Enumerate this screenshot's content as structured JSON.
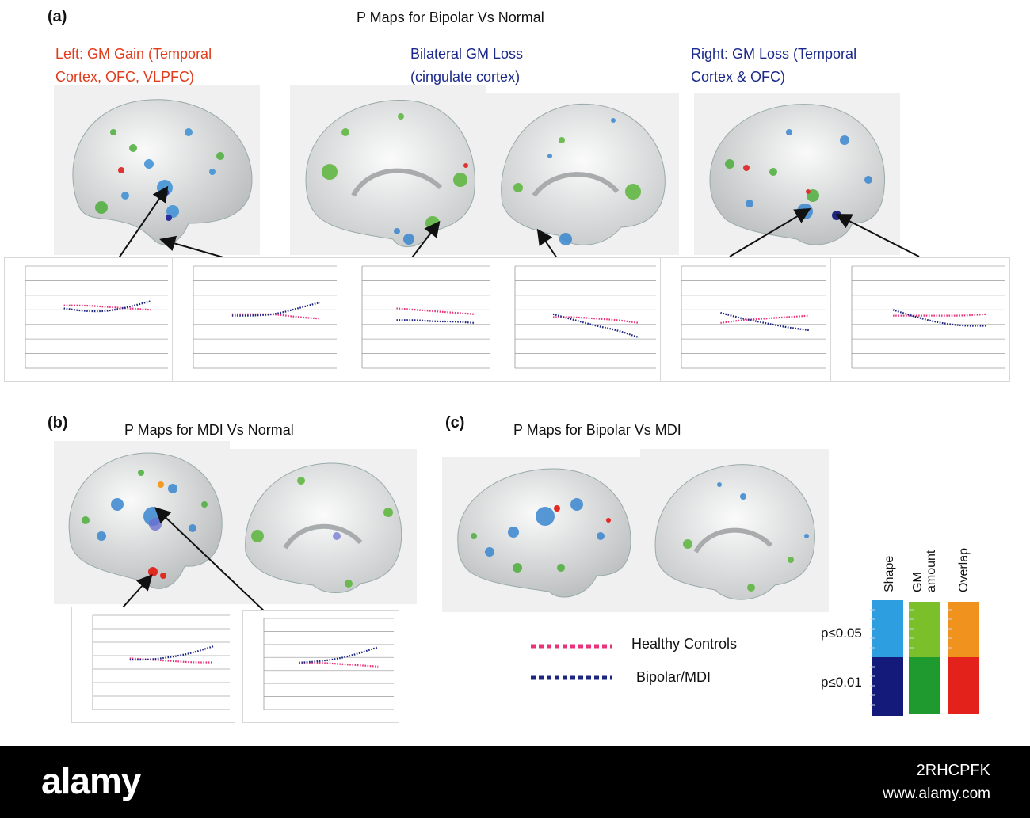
{
  "panel_a": {
    "letter": "(a)",
    "title": "P Maps for Bipolar Vs Normal",
    "left_caption": [
      "Left:     GM Gain (Temporal",
      "Cortex, OFC, VLPFC)"
    ],
    "mid_caption": [
      "Bilateral       GM Loss",
      "(cingulate cortex)"
    ],
    "right_caption": [
      "Right:     GM Loss (Temporal",
      "Cortex & OFC)"
    ]
  },
  "panel_b": {
    "letter": "(b)",
    "title": "P Maps for MDI Vs Normal"
  },
  "panel_c": {
    "letter": "(c)",
    "title": "P Maps for Bipolar Vs MDI"
  },
  "legend": {
    "healthy": "Healthy Controls",
    "bipolar": "Bipolar/MDI",
    "healthy_color": "#e8337a",
    "bipolar_color": "#1c2580"
  },
  "scale": {
    "columns": [
      "Shape",
      "GM amount",
      "Overlap"
    ],
    "p005": "p≤0.05",
    "p001": "p≤0.01",
    "colors": {
      "shape_005": "#2d9ee0",
      "shape_001": "#141a7a",
      "gm_005": "#7bbf2a",
      "gm_001": "#1f9a2e",
      "overlap_005": "#f0921e",
      "overlap_001": "#e3221c"
    }
  },
  "chart_data": [
    {
      "type": "line",
      "series": [
        {
          "values": [
            0.43,
            0.43,
            0.42,
            0.41,
            0.4
          ]
        },
        {
          "values": [
            0.41,
            0.39,
            0.39,
            0.42,
            0.46
          ]
        }
      ]
    },
    {
      "type": "line",
      "series": [
        {
          "values": [
            0.37,
            0.37,
            0.37,
            0.35,
            0.34
          ]
        },
        {
          "values": [
            0.36,
            0.36,
            0.37,
            0.41,
            0.45
          ]
        }
      ]
    },
    {
      "type": "line",
      "series": [
        {
          "values": [
            0.41,
            0.4,
            0.39,
            0.38,
            0.37
          ]
        },
        {
          "values": [
            0.33,
            0.33,
            0.32,
            0.32,
            0.31
          ]
        }
      ]
    },
    {
      "type": "line",
      "series": [
        {
          "values": [
            0.35,
            0.35,
            0.34,
            0.33,
            0.31
          ]
        },
        {
          "values": [
            0.37,
            0.33,
            0.29,
            0.26,
            0.21
          ]
        }
      ]
    },
    {
      "type": "line",
      "series": [
        {
          "values": [
            0.31,
            0.33,
            0.34,
            0.35,
            0.36
          ]
        },
        {
          "values": [
            0.38,
            0.34,
            0.31,
            0.28,
            0.26
          ]
        }
      ]
    },
    {
      "type": "line",
      "series": [
        {
          "values": [
            0.36,
            0.36,
            0.36,
            0.36,
            0.37
          ]
        },
        {
          "values": [
            0.4,
            0.35,
            0.31,
            0.29,
            0.29
          ]
        }
      ]
    },
    {
      "type": "line",
      "series": [
        {
          "values": [
            0.38,
            0.37,
            0.36,
            0.35,
            0.35
          ]
        },
        {
          "values": [
            0.37,
            0.37,
            0.39,
            0.42,
            0.47
          ]
        }
      ]
    },
    {
      "type": "line",
      "series": [
        {
          "values": [
            0.36,
            0.36,
            0.35,
            0.34,
            0.33
          ]
        },
        {
          "values": [
            0.36,
            0.37,
            0.39,
            0.43,
            0.48
          ]
        }
      ]
    }
  ],
  "watermark": {
    "logo": "alamy",
    "image_id": "2RHCPFK",
    "url": "www.alamy.com"
  }
}
